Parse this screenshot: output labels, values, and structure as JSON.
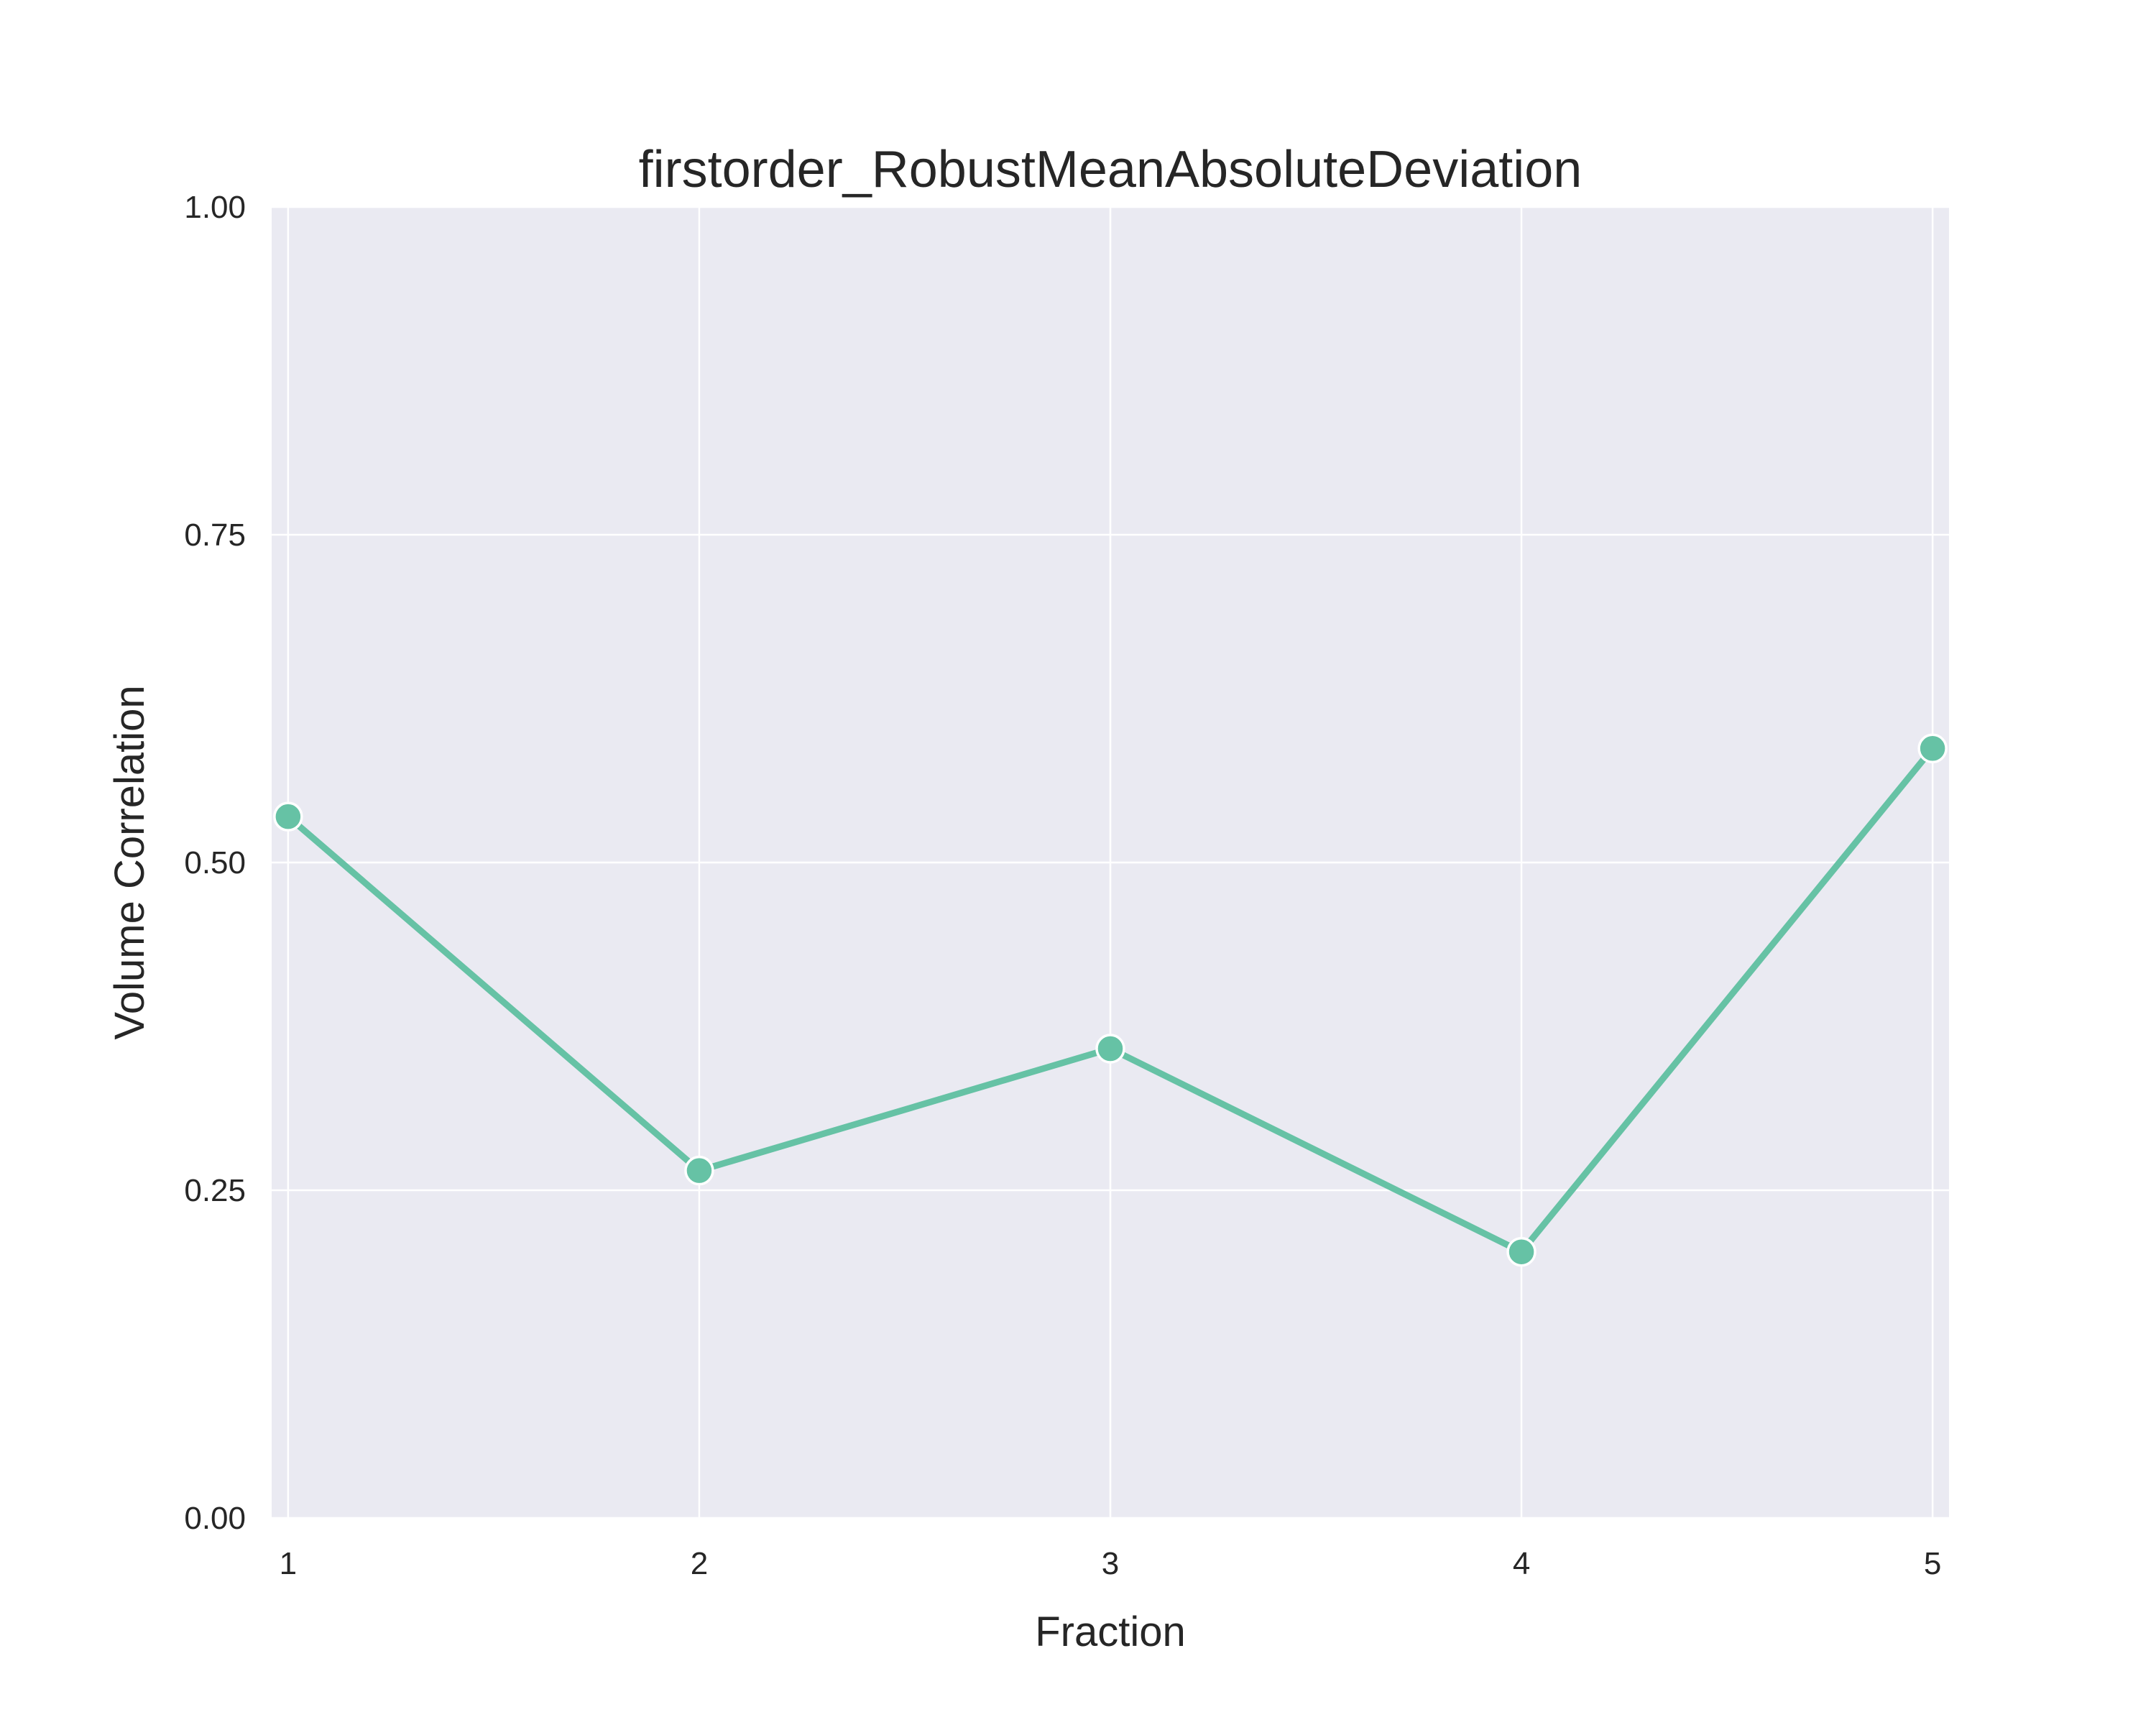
{
  "colors": {
    "plot_background": "#eaeaf2",
    "grid": "#ffffff",
    "series": "#66c2a5",
    "text": "#262626"
  },
  "chart_data": {
    "type": "line",
    "title": "firstorder_RobustMeanAbsoluteDeviation",
    "xlabel": "Fraction",
    "ylabel": "Volume Correlation",
    "x": [
      1,
      2,
      3,
      4,
      5
    ],
    "xticks": [
      "1",
      "2",
      "3",
      "4",
      "5"
    ],
    "yticks": [
      "0.00",
      "0.25",
      "0.50",
      "0.75",
      "1.00"
    ],
    "ylim": [
      0,
      1
    ],
    "xlim": [
      0.96,
      5.04
    ],
    "grid": true,
    "legend": "none",
    "series": [
      {
        "values": [
          0.535,
          0.265,
          0.358,
          0.203,
          0.587
        ],
        "marker": "circle"
      }
    ]
  }
}
